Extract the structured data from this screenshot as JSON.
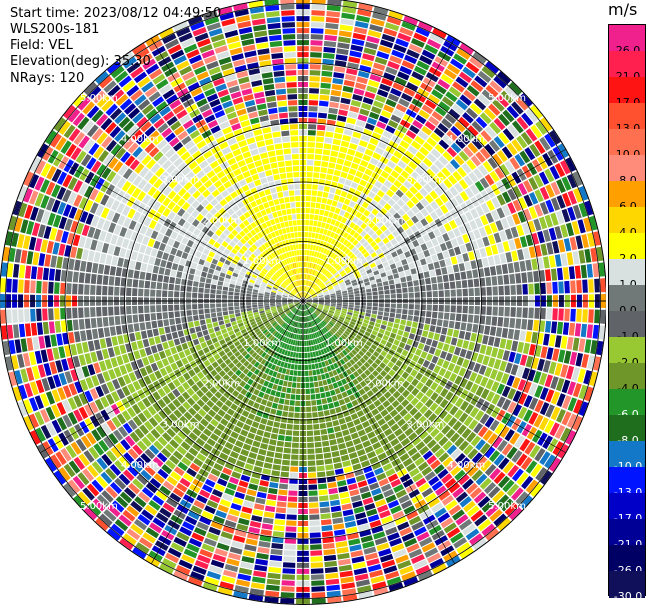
{
  "header": {
    "start_time": "Start time: 2023/08/12 04:49:50",
    "site": "WLS200s-181",
    "field": "Field: VEL",
    "elevation": "Elevation(deg): 35.30",
    "nrays": "NRays: 120"
  },
  "colorbar": {
    "unit": "m/s",
    "ticks": [
      "26.0",
      "21.0",
      "17.0",
      "13.0",
      "10.0",
      "8.0",
      "6.0",
      "4.0",
      "2.0",
      "1.0",
      "0.0",
      "-1.0",
      "-2.0",
      "-4.0",
      "-6.0",
      "-8.0",
      "-10.0",
      "-13.0",
      "-17.0",
      "-21.0",
      "-26.0",
      "-30.0"
    ],
    "colors": [
      "#f0208c",
      "#ff2050",
      "#ff1414",
      "#ff5030",
      "#ff7050",
      "#ff8c7a",
      "#ffa000",
      "#ffd700",
      "#ffff00",
      "#d8e0e0",
      "#707878",
      "#606468",
      "#98c832",
      "#6e9628",
      "#229628",
      "#1e6e1e",
      "#1478c8",
      "#0014ff",
      "#0000c8",
      "#000096",
      "#000064",
      "#10105a"
    ]
  },
  "chart_data": {
    "type": "ppi",
    "field": "VEL",
    "units": "m/s",
    "n_rays": 120,
    "elevation_deg": 35.3,
    "ring_labels": [
      "1.00km",
      "2.00km",
      "3.00km",
      "4.00km",
      "5.00km"
    ],
    "ring_km": [
      1,
      2,
      3,
      4,
      5
    ],
    "max_range_km": 5.1,
    "color_levels": [
      -30,
      -26,
      -21,
      -17,
      -13,
      -10,
      -8,
      -6,
      -4,
      -2,
      -1,
      0,
      1,
      2,
      4,
      6,
      8,
      10,
      13,
      17,
      21,
      26
    ],
    "valid_range_km": 3.9,
    "near_field_velocity": {
      "north_sector_center": 4,
      "north_sector_edge": 2,
      "south_sector_center": -6,
      "south_sector_edge": -2,
      "east_west_axis": 0
    }
  }
}
